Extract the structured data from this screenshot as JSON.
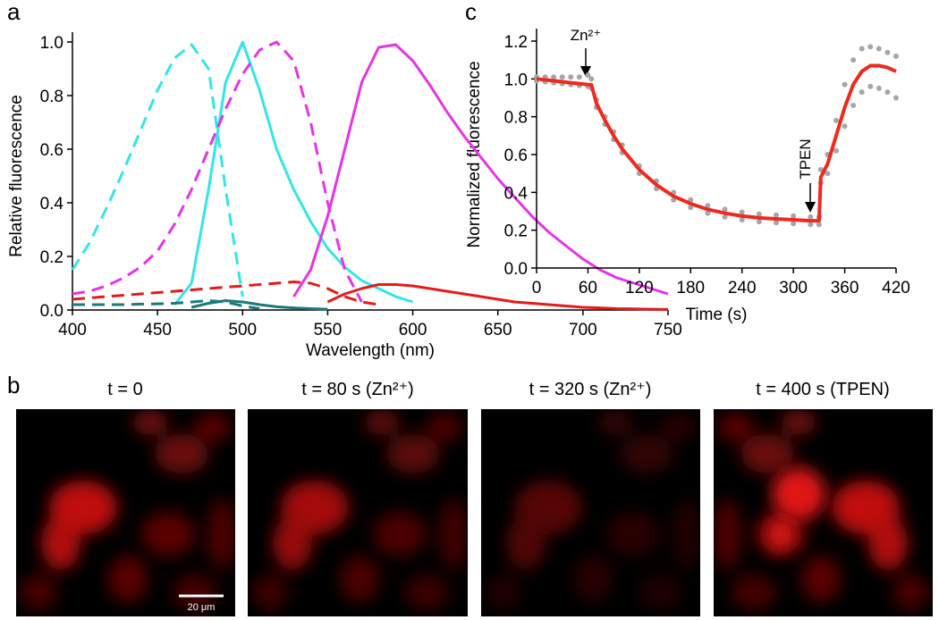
{
  "panels": {
    "a": "a",
    "b": "b",
    "c": "c"
  },
  "chart_data": [
    {
      "type": "line",
      "x_label": "Wavelength (nm)",
      "y_label": "Relative fluorescence",
      "x": [
        400,
        410,
        420,
        430,
        440,
        450,
        460,
        470,
        480,
        490,
        500,
        510,
        520,
        530,
        540,
        550,
        560,
        570,
        580,
        590,
        600,
        610,
        620,
        630,
        640,
        650,
        660,
        670,
        680,
        690,
        700,
        710,
        720,
        730,
        740,
        750
      ],
      "xlim": [
        400,
        750
      ],
      "xticks": [
        400,
        450,
        500,
        550,
        600,
        650,
        700,
        750
      ],
      "ylim": [
        0,
        1.0
      ],
      "yticks": [
        {
          "value": 0,
          "label": "0.0"
        },
        0.2,
        0.4,
        0.6,
        0.8,
        {
          "value": 1.0,
          "label": "1.0"
        }
      ],
      "series": [
        {
          "color": "#33e6e6",
          "dashed": true,
          "values": [
            0.15,
            0.25,
            0.38,
            0.52,
            0.67,
            0.82,
            0.94,
            0.99,
            0.9,
            0.45,
            0.05,
            null,
            null,
            null,
            null,
            null,
            null,
            null,
            null,
            null,
            null,
            null,
            null,
            null,
            null,
            null,
            null,
            null,
            null,
            null,
            null,
            null,
            null,
            null,
            null,
            null
          ]
        },
        {
          "color": "#33e6e6",
          "dashed": false,
          "values": [
            null,
            null,
            null,
            null,
            null,
            null,
            0.02,
            0.1,
            0.45,
            0.85,
            1.0,
            0.82,
            0.6,
            0.45,
            0.33,
            0.23,
            0.16,
            0.11,
            0.08,
            0.05,
            0.03,
            null,
            null,
            null,
            null,
            null,
            null,
            null,
            null,
            null,
            null,
            null,
            null,
            null,
            null,
            null
          ]
        },
        {
          "color": "#e633e6",
          "dashed": true,
          "values": [
            0.06,
            0.07,
            0.09,
            0.12,
            0.16,
            0.22,
            0.32,
            0.45,
            0.6,
            0.75,
            0.88,
            0.97,
            1.0,
            0.93,
            0.7,
            0.4,
            0.15,
            0.03,
            null,
            null,
            null,
            null,
            null,
            null,
            null,
            null,
            null,
            null,
            null,
            null,
            null,
            null,
            null,
            null,
            null,
            null
          ]
        },
        {
          "color": "#e633e6",
          "dashed": false,
          "values": [
            null,
            null,
            null,
            null,
            null,
            null,
            null,
            null,
            null,
            null,
            null,
            null,
            null,
            0.05,
            0.15,
            0.35,
            0.6,
            0.85,
            0.98,
            0.99,
            0.93,
            0.84,
            0.74,
            0.65,
            0.57,
            0.49,
            0.42,
            0.35,
            0.29,
            0.24,
            0.19,
            0.15,
            0.12,
            0.1,
            0.08,
            0.06
          ]
        },
        {
          "color": "#e61a1a",
          "dashed": true,
          "values": [
            0.04,
            0.045,
            0.05,
            0.055,
            0.06,
            0.065,
            0.07,
            0.075,
            0.08,
            0.085,
            0.09,
            0.095,
            0.1,
            0.105,
            0.1,
            0.08,
            0.05,
            0.03,
            0.02,
            null,
            null,
            null,
            null,
            null,
            null,
            null,
            null,
            null,
            null,
            null,
            null,
            null,
            null,
            null,
            null,
            null
          ]
        },
        {
          "color": "#e61a1a",
          "dashed": false,
          "values": [
            null,
            null,
            null,
            null,
            null,
            null,
            null,
            null,
            null,
            null,
            null,
            null,
            null,
            null,
            null,
            0.03,
            0.06,
            0.08,
            0.095,
            0.095,
            0.09,
            0.08,
            0.07,
            0.06,
            0.05,
            0.04,
            0.03,
            0.025,
            0.02,
            0.015,
            0.01,
            0.008,
            0.005,
            0.004,
            0.003,
            0.002
          ]
        },
        {
          "color": "#1a7a7a",
          "dashed": true,
          "values": [
            0.02,
            0.02,
            0.02,
            0.02,
            0.022,
            0.023,
            0.025,
            0.03,
            0.035,
            0.03,
            0.015,
            0.005,
            null,
            null,
            null,
            null,
            null,
            null,
            null,
            null,
            null,
            null,
            null,
            null,
            null,
            null,
            null,
            null,
            null,
            null,
            null,
            null,
            null,
            null,
            null,
            null
          ]
        },
        {
          "color": "#1a7a7a",
          "dashed": false,
          "values": [
            null,
            null,
            null,
            null,
            null,
            null,
            null,
            0.01,
            0.025,
            0.035,
            0.03,
            0.02,
            0.012,
            0.008,
            0.005,
            0.003,
            null,
            null,
            null,
            null,
            null,
            null,
            null,
            null,
            null,
            null,
            null,
            null,
            null,
            null,
            null,
            null,
            null,
            null,
            null,
            null
          ]
        }
      ]
    },
    {
      "type": "line",
      "x_label": "Time (s)",
      "y_label": "Normalized fluorescence",
      "annotations": [
        "Zn²⁺",
        "TPEN"
      ],
      "x": [
        0,
        10,
        20,
        30,
        40,
        50,
        60,
        64,
        70,
        80,
        90,
        100,
        120,
        140,
        160,
        180,
        200,
        220,
        240,
        260,
        280,
        300,
        320,
        330,
        332,
        340,
        350,
        360,
        370,
        380,
        390,
        400,
        410,
        420
      ],
      "xlim": [
        0,
        420
      ],
      "xticks": [
        0,
        60,
        120,
        180,
        240,
        300,
        360,
        420
      ],
      "ylim": [
        0,
        1.2
      ],
      "yticks": [
        {
          "value": 0,
          "label": "0.0"
        },
        0.2,
        0.4,
        0.6,
        0.8,
        {
          "value": 1.0,
          "label": "1.0"
        },
        1.2
      ],
      "series": [
        {
          "color": "#a6a6a6",
          "style": "dots",
          "values": [
            1.01,
            1.01,
            1.01,
            1.01,
            1.01,
            1.01,
            1.02,
            1.0,
            0.89,
            0.8,
            0.72,
            0.65,
            0.54,
            0.46,
            0.4,
            0.36,
            0.33,
            0.31,
            0.295,
            0.285,
            0.28,
            0.275,
            0.27,
            0.27,
            0.52,
            0.6,
            0.78,
            0.97,
            1.1,
            1.16,
            1.17,
            1.16,
            1.14,
            1.12
          ]
        },
        {
          "color": "#a6a6a6",
          "style": "dots",
          "values": [
            0.99,
            0.985,
            0.98,
            0.975,
            0.97,
            0.965,
            0.96,
            0.95,
            0.85,
            0.76,
            0.68,
            0.61,
            0.5,
            0.42,
            0.36,
            0.32,
            0.29,
            0.27,
            0.255,
            0.245,
            0.24,
            0.235,
            0.23,
            0.23,
            0.45,
            0.5,
            0.62,
            0.75,
            0.86,
            0.93,
            0.96,
            0.95,
            0.93,
            0.9
          ]
        },
        {
          "color": "#f0281e",
          "style": "line",
          "values": [
            1.0,
            0.995,
            0.99,
            0.985,
            0.98,
            0.975,
            0.97,
            0.97,
            0.87,
            0.78,
            0.7,
            0.63,
            0.52,
            0.44,
            0.38,
            0.34,
            0.31,
            0.29,
            0.275,
            0.265,
            0.26,
            0.255,
            0.25,
            0.25,
            0.48,
            0.55,
            0.7,
            0.85,
            0.97,
            1.04,
            1.07,
            1.07,
            1.06,
            1.04
          ]
        }
      ]
    }
  ],
  "panel_b": {
    "images": [
      {
        "label": "t = 0"
      },
      {
        "label": "t = 80 s (Zn²⁺)"
      },
      {
        "label": "t = 320 s (Zn²⁺)"
      },
      {
        "label": "t = 400 s (TPEN)"
      }
    ],
    "scale_bar": "20 μm"
  }
}
